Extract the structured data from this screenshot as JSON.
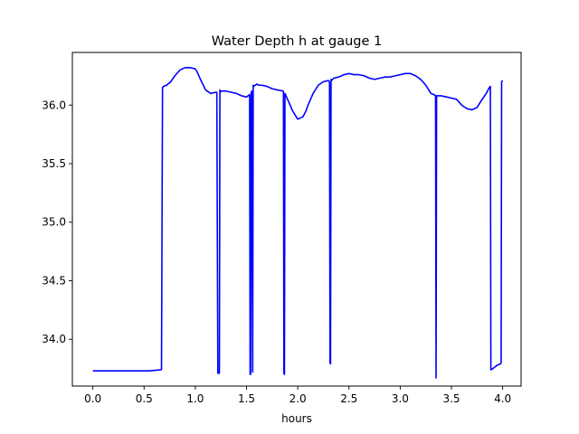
{
  "chart_data": {
    "type": "line",
    "title": "Water Depth h at gauge 1",
    "xlabel": "hours",
    "ylabel": "",
    "xlim": [
      -0.2,
      4.18
    ],
    "ylim": [
      33.6,
      36.45
    ],
    "xticks": [
      0.0,
      0.5,
      1.0,
      1.5,
      2.0,
      2.5,
      3.0,
      3.5,
      4.0
    ],
    "xtick_labels": [
      "0.0",
      "0.5",
      "1.0",
      "1.5",
      "2.0",
      "2.5",
      "3.0",
      "3.5",
      "4.0"
    ],
    "yticks": [
      34.0,
      34.5,
      35.0,
      35.5,
      36.0
    ],
    "ytick_labels": [
      "34.0",
      "34.5",
      "35.0",
      "35.5",
      "36.0"
    ],
    "grid": false,
    "legend": "none",
    "series": [
      {
        "color": "#0000ff",
        "x": [
          0.0,
          0.2,
          0.4,
          0.55,
          0.67,
          0.68,
          0.69,
          0.72,
          0.76,
          0.8,
          0.85,
          0.9,
          0.95,
          1.0,
          1.02,
          1.05,
          1.1,
          1.15,
          1.2,
          1.21,
          1.22,
          1.235,
          1.24,
          1.245,
          1.25,
          1.3,
          1.35,
          1.4,
          1.45,
          1.5,
          1.53,
          1.535,
          1.54,
          1.545,
          1.55,
          1.56,
          1.565,
          1.57,
          1.6,
          1.62,
          1.65,
          1.7,
          1.75,
          1.8,
          1.86,
          1.865,
          1.87,
          1.875,
          1.88,
          1.9,
          1.95,
          2.0,
          2.05,
          2.08,
          2.1,
          2.15,
          2.2,
          2.25,
          2.3,
          2.31,
          2.315,
          2.32,
          2.325,
          2.33,
          2.35,
          2.4,
          2.45,
          2.5,
          2.55,
          2.6,
          2.65,
          2.7,
          2.75,
          2.8,
          2.85,
          2.9,
          2.95,
          3.0,
          3.05,
          3.1,
          3.15,
          3.2,
          3.25,
          3.3,
          3.33,
          3.345,
          3.35,
          3.355,
          3.36,
          3.4,
          3.45,
          3.5,
          3.55,
          3.6,
          3.65,
          3.7,
          3.75,
          3.8,
          3.84,
          3.87,
          3.88,
          3.885,
          3.89,
          3.92,
          3.95,
          3.98,
          3.985,
          3.99,
          4.0
        ],
        "y": [
          33.73,
          33.73,
          33.73,
          33.73,
          33.74,
          36.15,
          36.16,
          36.17,
          36.2,
          36.25,
          36.3,
          36.32,
          36.32,
          36.31,
          36.28,
          36.22,
          36.13,
          36.1,
          36.11,
          36.11,
          33.71,
          33.71,
          36.13,
          36.11,
          36.12,
          36.12,
          36.11,
          36.1,
          36.08,
          36.07,
          36.09,
          33.7,
          33.7,
          36.1,
          36.12,
          33.72,
          36.17,
          36.16,
          36.18,
          36.17,
          36.17,
          36.16,
          36.14,
          36.13,
          36.12,
          33.71,
          33.7,
          36.1,
          36.09,
          36.05,
          35.95,
          35.88,
          35.9,
          35.95,
          36.0,
          36.1,
          36.17,
          36.2,
          36.21,
          36.2,
          33.8,
          33.79,
          36.22,
          36.21,
          36.23,
          36.24,
          36.26,
          36.27,
          36.26,
          36.26,
          36.25,
          36.23,
          36.22,
          36.23,
          36.24,
          36.24,
          36.25,
          36.26,
          36.27,
          36.27,
          36.25,
          36.22,
          36.17,
          36.1,
          36.09,
          36.08,
          33.67,
          36.08,
          36.08,
          36.08,
          36.07,
          36.06,
          36.05,
          36.0,
          35.97,
          35.96,
          35.98,
          36.05,
          36.1,
          36.15,
          36.16,
          33.74,
          33.74,
          33.76,
          33.78,
          33.79,
          33.8,
          36.2,
          36.21
        ]
      }
    ]
  }
}
